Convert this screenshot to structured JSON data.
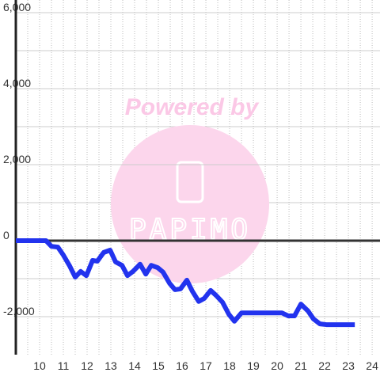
{
  "chart_data": {
    "type": "line",
    "watermark": {
      "caption": "Powered by",
      "logo": "PAPIMO"
    },
    "x": [
      9,
      10.27,
      10.5,
      10.77,
      11,
      11.27,
      11.5,
      11.73,
      11.97,
      12.23,
      12.43,
      12.7,
      12.97,
      13.2,
      13.47,
      13.7,
      13.93,
      14.23,
      14.47,
      14.7,
      14.97,
      15.2,
      15.47,
      15.7,
      15.93,
      16.2,
      16.43,
      16.7,
      16.93,
      17.2,
      17.43,
      17.7,
      17.97,
      18.2,
      18.5,
      20.2,
      20.47,
      20.73,
      21,
      21.3,
      21.53,
      21.8,
      22.07,
      23.27
    ],
    "series": [
      {
        "color": "#2233ee",
        "values": [
          0,
          0,
          -150,
          -170,
          -380,
          -670,
          -960,
          -810,
          -920,
          -520,
          -540,
          -310,
          -250,
          -560,
          -650,
          -920,
          -810,
          -620,
          -880,
          -650,
          -710,
          -830,
          -1120,
          -1290,
          -1270,
          -1040,
          -1330,
          -1600,
          -1520,
          -1310,
          -1440,
          -1620,
          -1940,
          -2120,
          -1900,
          -1900,
          -1980,
          -1980,
          -1670,
          -1850,
          -2060,
          -2190,
          -2210,
          -2210
        ]
      }
    ],
    "xlim": [
      9,
      24.33
    ],
    "ylim": [
      -3000,
      6000
    ],
    "xticks": [
      10,
      11,
      12,
      13,
      14,
      15,
      16,
      17,
      18,
      19,
      20,
      21,
      22,
      23,
      24
    ],
    "x_minor_ticks": [
      9.5,
      10.5,
      11.5,
      12.5,
      13.5,
      14.5,
      15.5,
      16.5,
      17.5,
      18.5,
      19.5,
      20.5,
      21.5,
      22.5,
      23.5
    ],
    "yticks": [
      {
        "value": -2000,
        "label": "-2,000"
      },
      0,
      {
        "value": 2000,
        "label": "2,000"
      },
      {
        "value": 4000,
        "label": "4,000"
      },
      {
        "value": 6000,
        "label": "6,000"
      }
    ],
    "y_minor_ticks": [
      -1000,
      1000,
      3000,
      5000
    ],
    "grid": true
  }
}
